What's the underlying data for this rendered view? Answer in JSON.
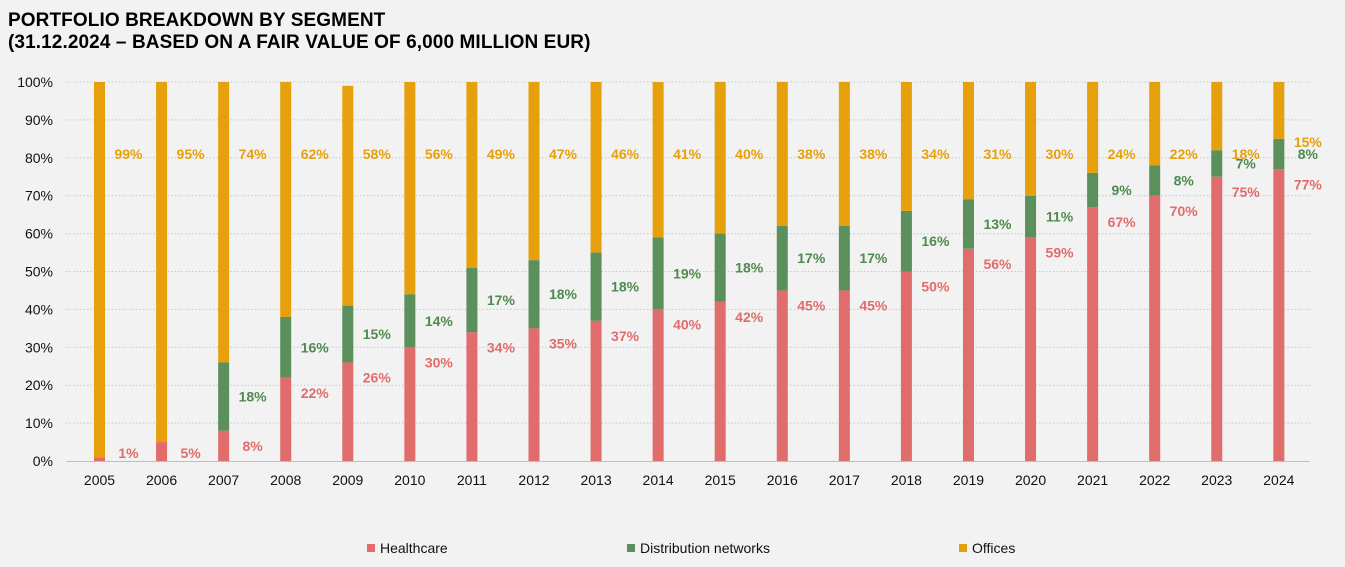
{
  "title_line1": "PORTFOLIO BREAKDOWN BY SEGMENT",
  "title_line2": "(31.12.2024 – BASED ON A FAIR VALUE OF 6,000 MILLION EUR)",
  "colors": {
    "healthcare": "#e06c6c",
    "distribution": "#5b8f5b",
    "offices": "#e6a00b",
    "healthcare_label": "#e06c6c",
    "distribution_label": "#4f8a4f",
    "offices_label": "#e6a00b",
    "grid": "#c8c8c8"
  },
  "chart_data": {
    "type": "bar",
    "stacked": true,
    "categories": [
      "2005",
      "2006",
      "2007",
      "2008",
      "2009",
      "2010",
      "2011",
      "2012",
      "2013",
      "2014",
      "2015",
      "2016",
      "2017",
      "2018",
      "2019",
      "2020",
      "2021",
      "2022",
      "2023",
      "2024"
    ],
    "series": [
      {
        "name": "Healthcare",
        "values": [
          1,
          5,
          8,
          22,
          26,
          30,
          34,
          35,
          37,
          40,
          42,
          45,
          45,
          50,
          56,
          59,
          67,
          70,
          75,
          77
        ],
        "labels": [
          "1%",
          "5%",
          "8%",
          "22%",
          "26%",
          "30%",
          "34%",
          "35%",
          "37%",
          "40%",
          "42%",
          "45%",
          "45%",
          "50%",
          "56%",
          "59%",
          "67%",
          "70%",
          "75%",
          "77%"
        ]
      },
      {
        "name": "Distribution networks",
        "values": [
          0,
          0,
          18,
          16,
          15,
          14,
          17,
          18,
          18,
          19,
          18,
          17,
          17,
          16,
          13,
          11,
          9,
          8,
          7,
          8
        ],
        "labels": [
          "",
          "",
          "18%",
          "16%",
          "15%",
          "14%",
          "17%",
          "18%",
          "18%",
          "19%",
          "18%",
          "17%",
          "17%",
          "16%",
          "13%",
          "11%",
          "9%",
          "8%",
          "7%",
          "8%"
        ]
      },
      {
        "name": "Offices",
        "values": [
          99,
          95,
          74,
          62,
          58,
          56,
          49,
          47,
          46,
          41,
          40,
          38,
          38,
          34,
          31,
          30,
          24,
          22,
          18,
          15
        ],
        "labels": [
          "99%",
          "95%",
          "74%",
          "62%",
          "58%",
          "56%",
          "49%",
          "47%",
          "46%",
          "41%",
          "40%",
          "38%",
          "38%",
          "34%",
          "31%",
          "30%",
          "24%",
          "22%",
          "18%",
          "15%"
        ]
      }
    ],
    "ylim": [
      0,
      100
    ],
    "yticks": [
      "0%",
      "10%",
      "20%",
      "30%",
      "40%",
      "50%",
      "60%",
      "70%",
      "80%",
      "90%",
      "100%"
    ],
    "grid": true,
    "legend": "bottom"
  }
}
